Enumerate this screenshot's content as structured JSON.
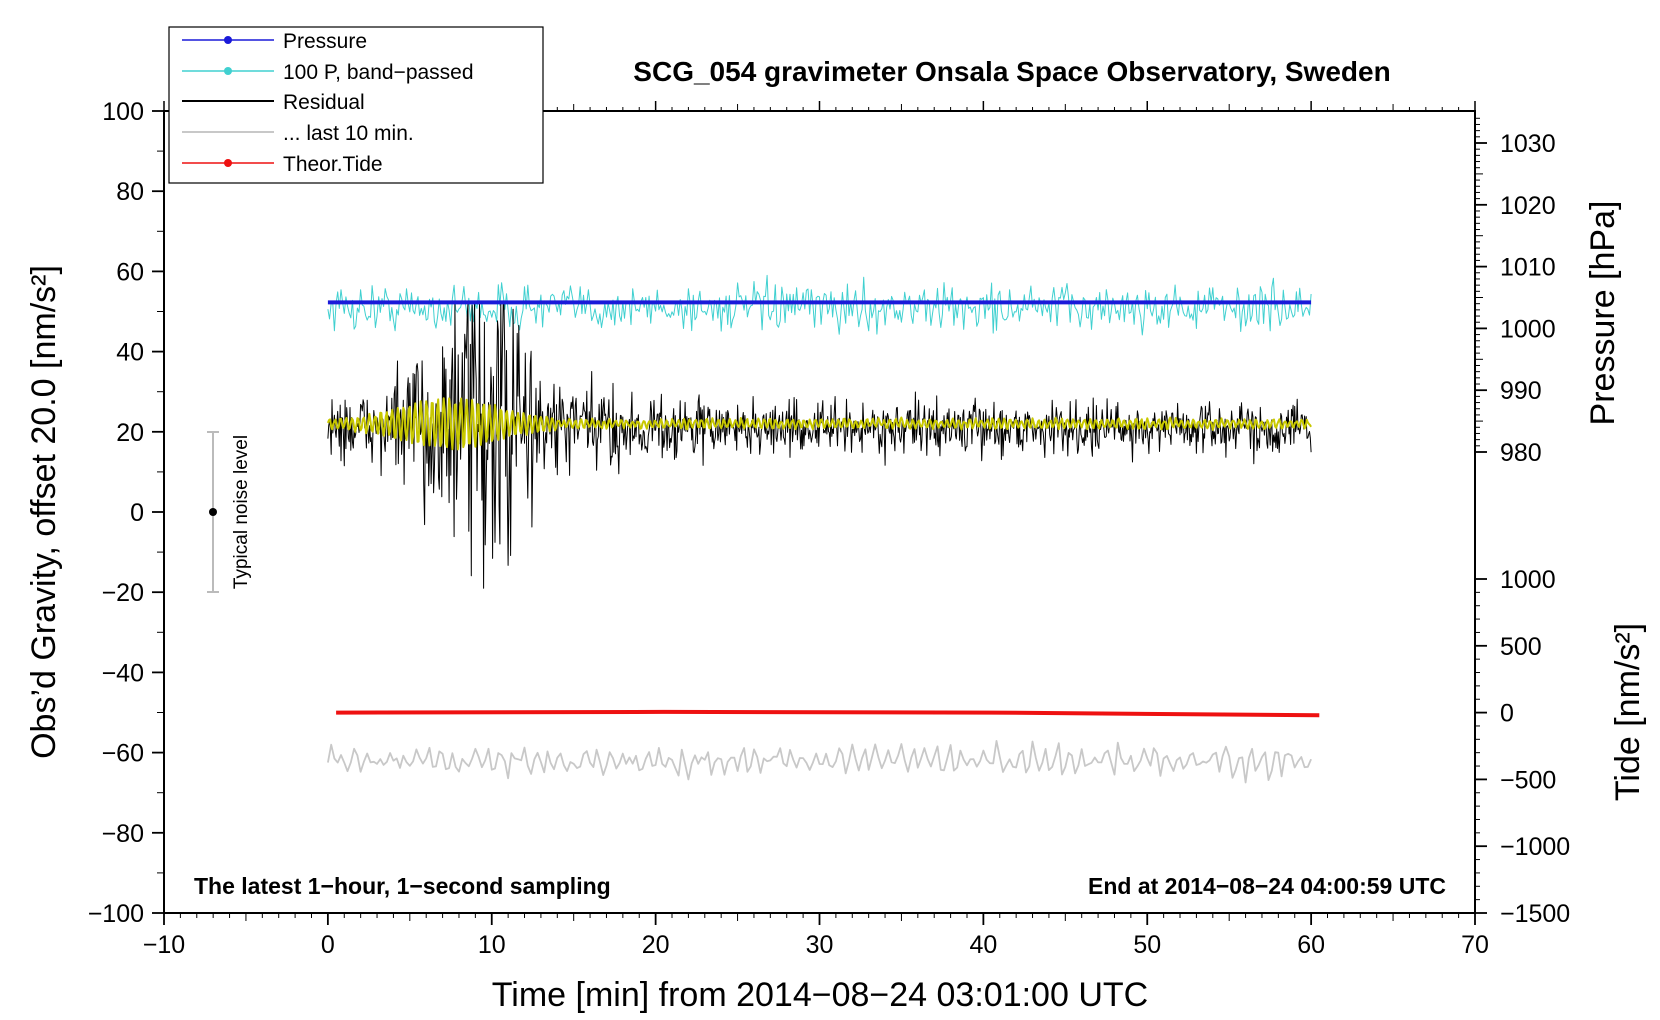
{
  "chart_data": {
    "type": "line",
    "title": "SCG_054 gravimeter Onsala Space Observatory, Sweden",
    "xlabel": "Time [min] from 2014−08−24 03:01:00 UTC",
    "ylabel_left": "Obs’d Gravity, offset 20.0 [nm/s²]",
    "ylabel_right_pressure": "Pressure [hPa]",
    "ylabel_right_tide": "Tide [nm/s²]",
    "xlim": [
      -10,
      70
    ],
    "ylim": [
      -100,
      100
    ],
    "pressure_axis": {
      "range": [
        979,
        1030
      ]
    },
    "tide_axis": {
      "range": [
        -1500,
        1000
      ]
    },
    "x_ticks": [
      "−10",
      "0",
      "10",
      "20",
      "30",
      "40",
      "50",
      "60",
      "70"
    ],
    "y_ticks": [
      "−100",
      "−80",
      "−60",
      "−40",
      "−20",
      "0",
      "20",
      "40",
      "60",
      "80",
      "100"
    ],
    "pressure_ticks": [
      "980",
      "990",
      "1000",
      "1010",
      "1020",
      "1030"
    ],
    "tide_ticks": [
      "−1500",
      "−1000",
      "−500",
      "0",
      "500",
      "1000"
    ],
    "legend": [
      {
        "label": "Pressure",
        "color": "#1a1ad9",
        "marker": true
      },
      {
        "label": "100 P, band−passed",
        "color": "#40d0d0",
        "marker": true
      },
      {
        "label": "Residual",
        "color": "#000000",
        "marker": false
      },
      {
        "label": "... last 10 min.",
        "color": "#c8c8c8",
        "marker": false
      },
      {
        "label": "Theor.Tide",
        "color": "#ee1111",
        "marker": true
      }
    ],
    "series": [
      {
        "name": "Pressure",
        "axis": "pressure",
        "x_range": [
          0,
          60
        ],
        "values": [
          1004.2,
          1004.2,
          1004.2
        ]
      },
      {
        "name": "100 P, band−passed",
        "axis": "gravity",
        "x_range": [
          0,
          60
        ],
        "mean": 51,
        "amplitude": 9
      },
      {
        "name": "Residual",
        "axis": "gravity",
        "x_range": [
          0,
          60
        ],
        "mean": 21,
        "min": -19,
        "max": 52
      },
      {
        "name": "Residual (smoothed)",
        "axis": "gravity",
        "x_range": [
          0,
          60
        ],
        "mean": 22,
        "amplitude": 6
      },
      {
        "name": "... last 10 min.",
        "axis": "gravity",
        "x_range": [
          0,
          60
        ],
        "mean": -62,
        "amplitude": 6
      },
      {
        "name": "Theor.Tide",
        "axis": "tide",
        "x": [
          0,
          20,
          40,
          60
        ],
        "values": [
          0,
          5,
          0,
          -20
        ]
      }
    ],
    "noise_bar": {
      "label": "Typical noise level",
      "x": -7,
      "center": 0,
      "low": -20,
      "high": 20
    },
    "annotations": {
      "left": "The latest 1−hour, 1−second sampling",
      "right": "End at 2014−08−24 04:00:59 UTC"
    },
    "colors": {
      "pressure": "#1a1ad9",
      "bandpassed": "#40d0d0",
      "residual": "#000000",
      "smoothed": "#c8c800",
      "last10": "#c8c8c8",
      "tide": "#ee1111"
    }
  }
}
